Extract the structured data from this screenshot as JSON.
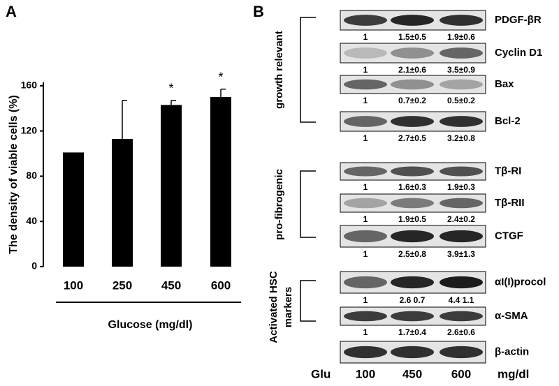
{
  "chart_data": {
    "type": "bar",
    "panel": "A",
    "y_label": "The density of viable cells (%)",
    "x_label": "Glucose (mg/dl)",
    "categories": [
      "100",
      "250",
      "450",
      "600"
    ],
    "values": [
      101,
      113,
      143,
      150
    ],
    "errors": [
      0,
      34,
      4,
      7
    ],
    "color": "#000000",
    "ylim": [
      0,
      163
    ],
    "yticks": [
      0,
      40,
      80,
      120,
      160
    ],
    "annotations": [
      {
        "category": "450",
        "text": "*"
      },
      {
        "category": "600",
        "text": "*"
      }
    ]
  },
  "panel_b": {
    "label": "B",
    "groups": [
      {
        "label": [
          "growth relevant"
        ],
        "rows": [
          {
            "name": "PDGF-βR",
            "values": [
              "1",
              "1.5±0.5",
              "1.9±0.6"
            ]
          },
          {
            "name": "Cyclin D1",
            "values": [
              "1",
              "2.1±0.6",
              "3.5±0.9"
            ]
          },
          {
            "name": "Bax",
            "values": [
              "1",
              "0.7±0.2",
              "0.5±0.2"
            ]
          },
          {
            "name": "Bcl-2",
            "values": [
              "1",
              "2.7±0.5",
              "3.2±0.8"
            ]
          }
        ]
      },
      {
        "label": [
          "pro-fibrogenic"
        ],
        "rows": [
          {
            "name": "Tβ-RI",
            "values": [
              "1",
              "1.6±0.3",
              "1.9±0.3"
            ]
          },
          {
            "name": "Tβ-RII",
            "values": [
              "1",
              "1.9±0.5",
              "2.4±0.2"
            ]
          },
          {
            "name": "CTGF",
            "values": [
              "1",
              "2.5±0.8",
              "3.9±1.3"
            ]
          }
        ]
      },
      {
        "label": [
          "Activated HSC",
          "markers"
        ],
        "rows": [
          {
            "name": "αI(I)procol",
            "values": [
              "1",
              "2.6  0.7",
              "4.4  1.1"
            ]
          },
          {
            "name": "α-SMA",
            "values": [
              "1",
              "1.7±0.4",
              "2.6±0.6"
            ]
          },
          {
            "name": "β-actin"
          }
        ]
      }
    ],
    "footer": {
      "prefix": "Glu",
      "doses": [
        "100",
        "450",
        "600"
      ],
      "unit": "mg/dl"
    }
  }
}
